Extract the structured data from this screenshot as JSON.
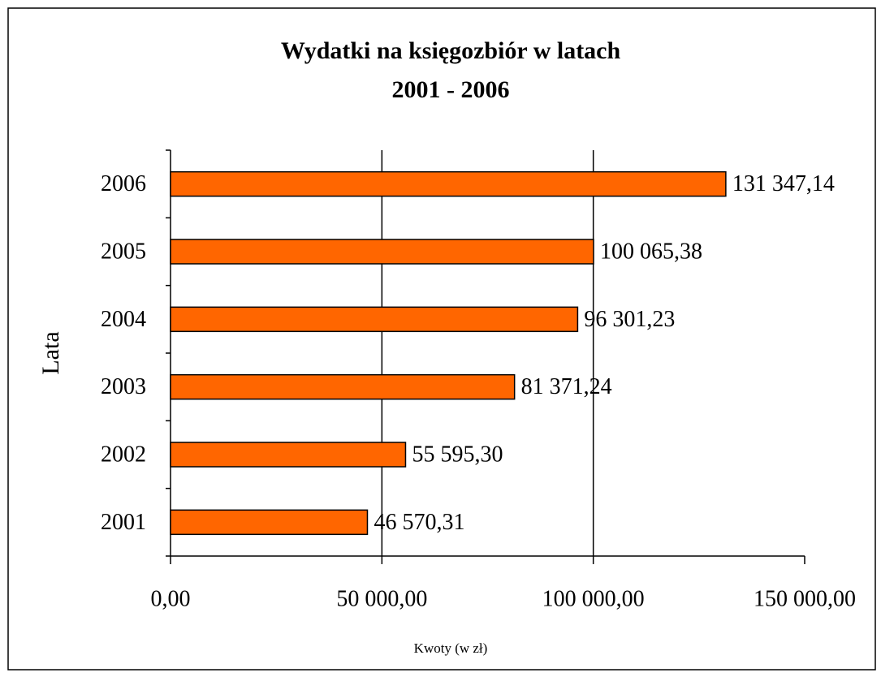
{
  "chart_data": {
    "type": "bar",
    "orientation": "horizontal",
    "title": "Wydatki na księgozbiór w latach",
    "subtitle": "2001 - 2006",
    "x_label": "Kwoty (w zł)",
    "y_label": "Lata",
    "categories": [
      "2001",
      "2002",
      "2003",
      "2004",
      "2005",
      "2006"
    ],
    "values": [
      46570.31,
      55595.3,
      81371.24,
      96301.23,
      100065.38,
      131347.14
    ],
    "value_labels": [
      "46 570,31",
      "55 595,30",
      "81 371,24",
      "96 301,23",
      "100 065,38",
      "131 347,14"
    ],
    "color": "#ff6600",
    "xlim": [
      0,
      150000
    ],
    "xticks": [
      {
        "value": 0,
        "label": "0,00"
      },
      {
        "value": 50000,
        "label": "50 000,00"
      },
      {
        "value": 100000,
        "label": "100 000,00"
      },
      {
        "value": 150000,
        "label": "150 000,00"
      }
    ],
    "grid": true
  }
}
